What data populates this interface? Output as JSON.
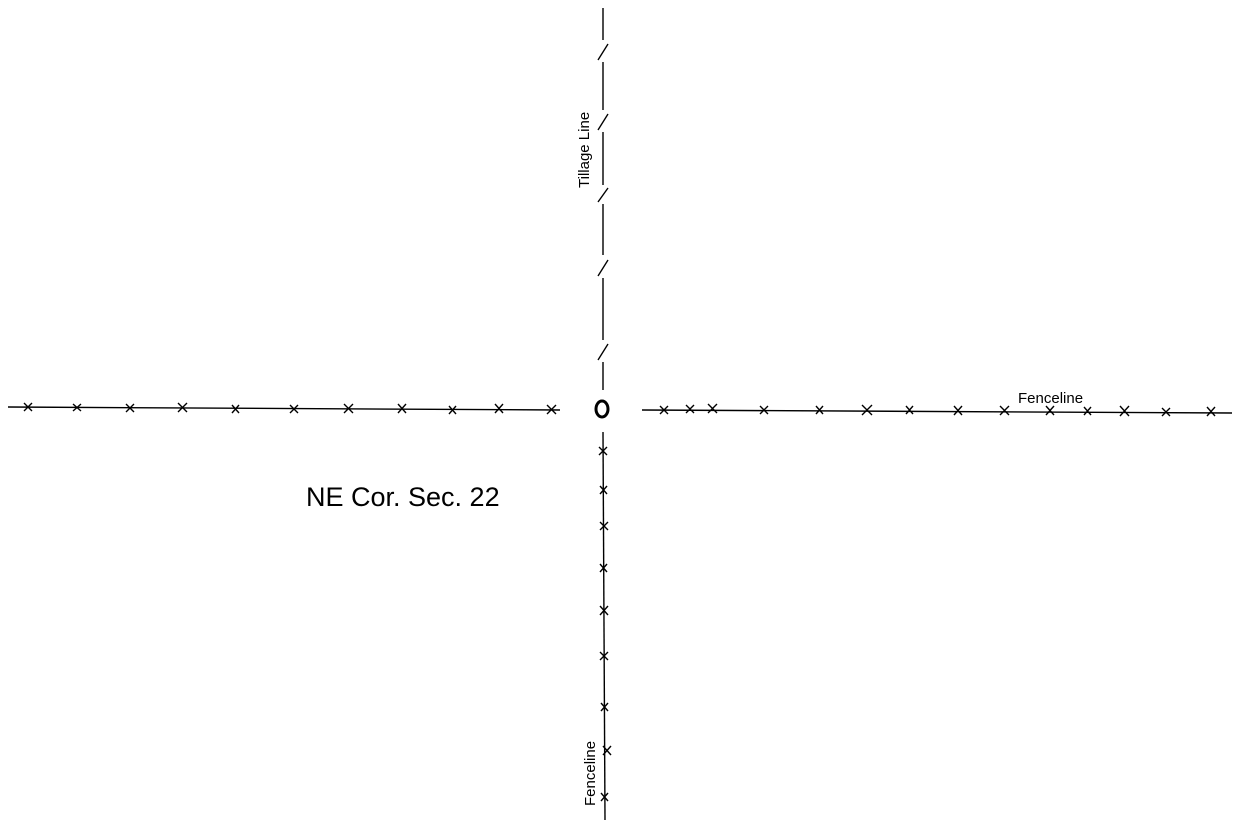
{
  "labels": {
    "tillage_line": "Tillage Line",
    "fenceline_east": "Fenceline",
    "fenceline_south": "Fenceline",
    "corner": "NE Cor. Sec. 22"
  },
  "colors": {
    "ink": "#000000",
    "paper": "#ffffff"
  }
}
